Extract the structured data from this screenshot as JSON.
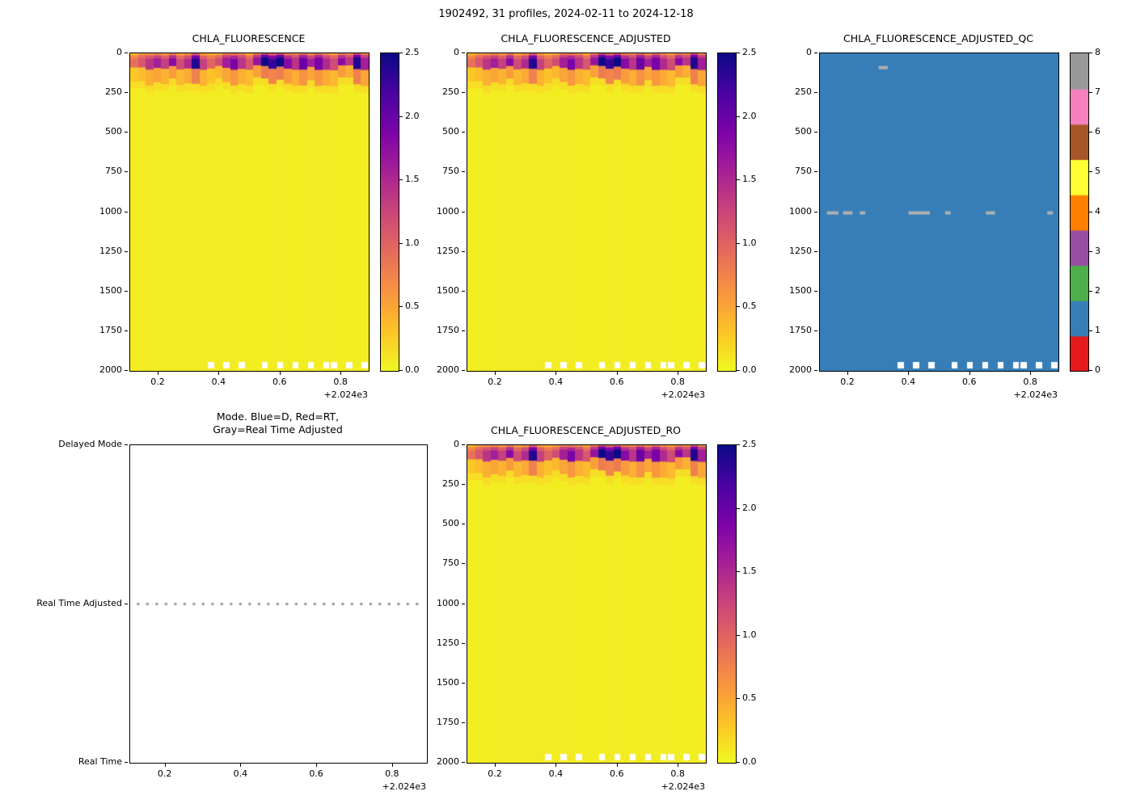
{
  "figure": {
    "suptitle": "1902492, 31 profiles, 2024-02-11 to 2024-12-18"
  },
  "chart_data": [
    {
      "id": "chla-fluorescence",
      "type": "heatmap",
      "title": "CHLA_FLUORESCENCE",
      "xlim": [
        0.107,
        0.89
      ],
      "x_ticks": [
        "0.2",
        "0.4",
        "0.6",
        "0.8"
      ],
      "x_offset_label": "+2.024e3",
      "ylim": [
        2000,
        0
      ],
      "y_ticks": [
        "0",
        "250",
        "500",
        "750",
        "1000",
        "1250",
        "1500",
        "1750",
        "2000"
      ],
      "colorbar": {
        "vmin": 0.0,
        "vmax": 2.5,
        "ticks": [
          "0.0",
          "0.5",
          "1.0",
          "1.5",
          "2.0",
          "2.5"
        ],
        "colormap": "plasma_r"
      },
      "n_profiles": 31,
      "background_value": 0.07,
      "surface_peaks": [
        0.9,
        1.1,
        1.4,
        1.6,
        1.3,
        1.8,
        1.2,
        1.5,
        2.4,
        1.3,
        1.0,
        1.2,
        1.6,
        1.9,
        1.4,
        1.1,
        1.7,
        2.5,
        2.3,
        2.5,
        1.8,
        1.4,
        2.0,
        1.6,
        1.9,
        1.5,
        1.2,
        1.8,
        1.4,
        2.4,
        1.6
      ],
      "bottom_gap_profiles": [
        10,
        12,
        14,
        17,
        19,
        21,
        23,
        25,
        26,
        28,
        30
      ]
    },
    {
      "id": "chla-fluorescence-adjusted",
      "type": "heatmap",
      "title": "CHLA_FLUORESCENCE_ADJUSTED",
      "xlim": [
        0.107,
        0.89
      ],
      "x_ticks": [
        "0.2",
        "0.4",
        "0.6",
        "0.8"
      ],
      "x_offset_label": "+2.024e3",
      "ylim": [
        2000,
        0
      ],
      "y_ticks": [
        "0",
        "250",
        "500",
        "750",
        "1000",
        "1250",
        "1500",
        "1750",
        "2000"
      ],
      "colorbar": {
        "vmin": 0.0,
        "vmax": 2.5,
        "ticks": [
          "0.0",
          "0.5",
          "1.0",
          "1.5",
          "2.0",
          "2.5"
        ],
        "colormap": "plasma_r"
      },
      "n_profiles": 31,
      "background_value": 0.07,
      "surface_peaks": [
        0.9,
        1.1,
        1.4,
        1.6,
        1.3,
        1.8,
        1.2,
        1.5,
        2.4,
        1.3,
        1.0,
        1.2,
        1.6,
        1.9,
        1.4,
        1.1,
        1.7,
        2.5,
        2.3,
        2.5,
        1.8,
        1.4,
        2.0,
        1.6,
        1.9,
        1.5,
        1.2,
        1.8,
        1.4,
        2.4,
        1.6
      ],
      "bottom_gap_profiles": [
        10,
        12,
        14,
        17,
        19,
        21,
        23,
        25,
        26,
        28,
        30
      ]
    },
    {
      "id": "chla-fluorescence-adjusted-qc",
      "type": "heatmap",
      "title": "CHLA_FLUORESCENCE_ADJUSTED_QC",
      "xlim": [
        0.107,
        0.89
      ],
      "x_ticks": [
        "0.2",
        "0.4",
        "0.6",
        "0.8"
      ],
      "x_offset_label": "+2.024e3",
      "ylim": [
        2000,
        0
      ],
      "y_ticks": [
        "0",
        "250",
        "500",
        "750",
        "1000",
        "1250",
        "1500",
        "1750",
        "2000"
      ],
      "n_profiles": 31,
      "qc": {
        "base_value": 1,
        "palette": [
          "#e41a1c",
          "#377eb8",
          "#4daf4a",
          "#984ea3",
          "#ff7f00",
          "#ffff33",
          "#a65628",
          "#f781bf",
          "#999999"
        ],
        "colorbar_ticks": [
          "0",
          "1",
          "2",
          "3",
          "4",
          "5",
          "6",
          "7",
          "8"
        ],
        "gray_color": "#b0b0b0",
        "gray_marks": [
          {
            "x0": 0.3,
            "x1": 0.33,
            "depth": 90
          },
          {
            "x0": 0.13,
            "x1": 0.168,
            "depth": 1005
          },
          {
            "x0": 0.183,
            "x1": 0.214,
            "depth": 1005
          },
          {
            "x0": 0.238,
            "x1": 0.256,
            "depth": 1005
          },
          {
            "x0": 0.398,
            "x1": 0.468,
            "depth": 1005
          },
          {
            "x0": 0.518,
            "x1": 0.536,
            "depth": 1005
          },
          {
            "x0": 0.652,
            "x1": 0.682,
            "depth": 1005
          },
          {
            "x0": 0.853,
            "x1": 0.872,
            "depth": 1005
          }
        ]
      },
      "bottom_gap_profiles": [
        10,
        12,
        14,
        17,
        19,
        21,
        23,
        25,
        26,
        28,
        30
      ]
    },
    {
      "id": "data-mode",
      "type": "scatter",
      "title_lines": [
        "Mode. Blue=D, Red=RT,",
        "Gray=Real Time Adjusted"
      ],
      "xlim": [
        0.107,
        0.89
      ],
      "x_ticks": [
        "0.2",
        "0.4",
        "0.6",
        "0.8"
      ],
      "x_offset_label": "+2.024e3",
      "y_categories": [
        "Delayed Mode",
        "Real Time Adjusted",
        "Real Time"
      ],
      "points": {
        "category": "Real Time Adjusted",
        "count": 31,
        "x_start": 0.128,
        "x_end": 0.864,
        "color": "#999999",
        "marker": "dot"
      }
    },
    {
      "id": "chla-fluorescence-adjusted-ro",
      "type": "heatmap",
      "title": "CHLA_FLUORESCENCE_ADJUSTED_RO",
      "xlim": [
        0.107,
        0.89
      ],
      "x_ticks": [
        "0.2",
        "0.4",
        "0.6",
        "0.8"
      ],
      "x_offset_label": "+2.024e3",
      "ylim": [
        2000,
        0
      ],
      "y_ticks": [
        "0",
        "250",
        "500",
        "750",
        "1000",
        "1250",
        "1500",
        "1750",
        "2000"
      ],
      "colorbar": {
        "vmin": 0.0,
        "vmax": 2.5,
        "ticks": [
          "0.0",
          "0.5",
          "1.0",
          "1.5",
          "2.0",
          "2.5"
        ],
        "colormap": "plasma_r"
      },
      "n_profiles": 31,
      "background_value": 0.07,
      "surface_peaks": [
        0.9,
        1.1,
        1.4,
        1.6,
        1.3,
        1.8,
        1.2,
        1.5,
        2.4,
        1.3,
        1.0,
        1.2,
        1.6,
        1.9,
        1.4,
        1.1,
        1.7,
        2.5,
        2.3,
        2.5,
        1.8,
        1.4,
        2.0,
        1.6,
        1.9,
        1.5,
        1.2,
        1.8,
        1.4,
        2.4,
        1.6
      ],
      "bottom_gap_profiles": [
        10,
        12,
        14,
        17,
        19,
        21,
        23,
        25,
        26,
        28,
        30
      ]
    }
  ]
}
